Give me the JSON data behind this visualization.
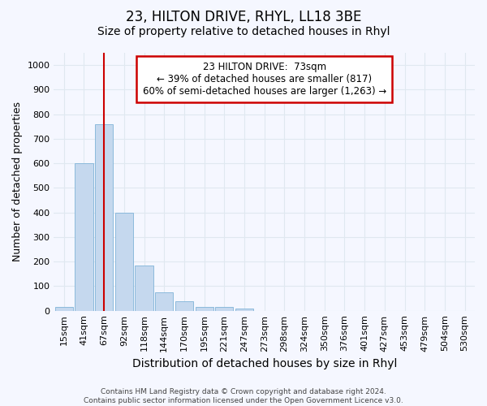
{
  "title": "23, HILTON DRIVE, RHYL, LL18 3BE",
  "subtitle": "Size of property relative to detached houses in Rhyl",
  "xlabel": "Distribution of detached houses by size in Rhyl",
  "ylabel": "Number of detached properties",
  "categories": [
    "15sqm",
    "41sqm",
    "67sqm",
    "92sqm",
    "118sqm",
    "144sqm",
    "170sqm",
    "195sqm",
    "221sqm",
    "247sqm",
    "273sqm",
    "298sqm",
    "324sqm",
    "350sqm",
    "376sqm",
    "401sqm",
    "427sqm",
    "453sqm",
    "479sqm",
    "504sqm",
    "530sqm"
  ],
  "values": [
    15,
    600,
    760,
    400,
    185,
    75,
    40,
    15,
    15,
    10,
    0,
    0,
    0,
    0,
    0,
    0,
    0,
    0,
    0,
    0,
    0
  ],
  "bar_color": "#c5d8ee",
  "bar_edge_color": "#7fb3d8",
  "ylim": [
    0,
    1050
  ],
  "yticks": [
    0,
    100,
    200,
    300,
    400,
    500,
    600,
    700,
    800,
    900,
    1000
  ],
  "vline_x_index": 2.0,
  "vline_color": "#cc0000",
  "annotation_text": "23 HILTON DRIVE:  73sqm\n← 39% of detached houses are smaller (817)\n60% of semi-detached houses are larger (1,263) →",
  "annotation_box_color": "#ffffff",
  "annotation_box_edge": "#cc0000",
  "footnote": "Contains HM Land Registry data © Crown copyright and database right 2024.\nContains public sector information licensed under the Open Government Licence v3.0.",
  "background_color": "#f5f7ff",
  "grid_color": "#e0e8f0",
  "title_fontsize": 12,
  "subtitle_fontsize": 10,
  "xlabel_fontsize": 10,
  "ylabel_fontsize": 9,
  "tick_fontsize": 8,
  "annotation_fontsize": 8.5,
  "footnote_fontsize": 6.5
}
